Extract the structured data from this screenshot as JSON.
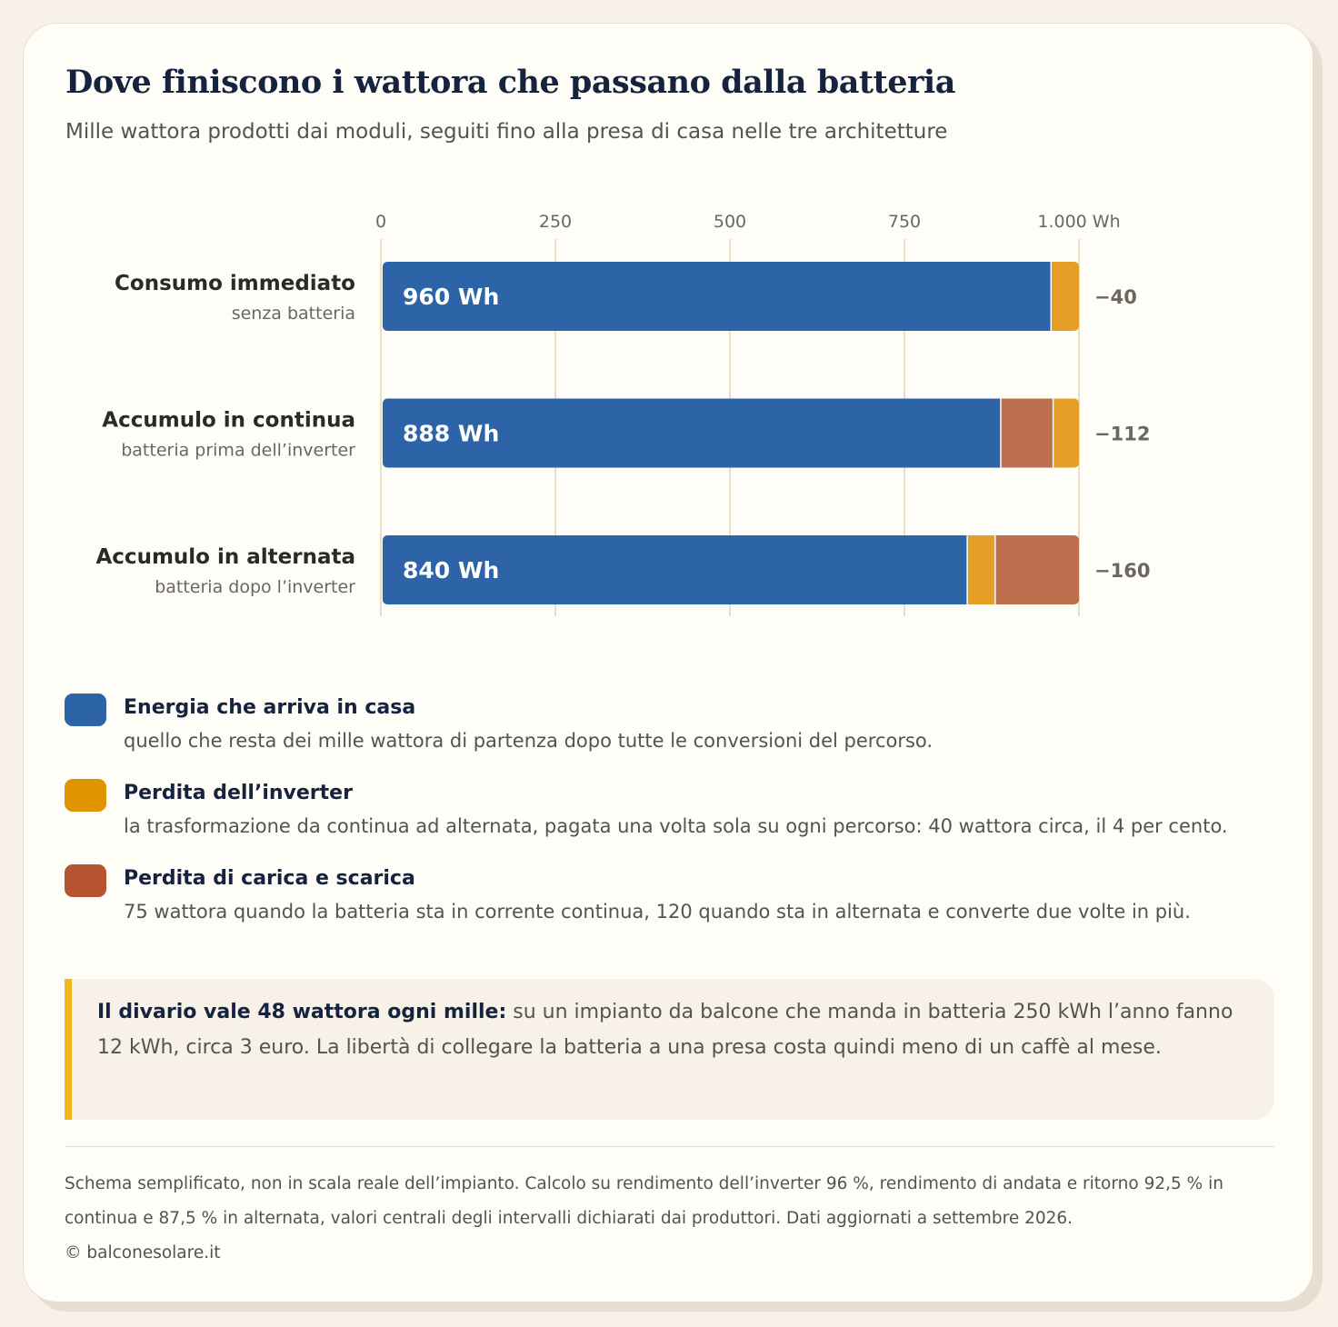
{
  "header": {
    "title": "Dove finiscono i wattora che passano dalla batteria",
    "subtitle": "Mille wattora prodotti dai moduli, seguiti fino alla presa di casa nelle tre architetture"
  },
  "colors": {
    "energy": "#2c64a7",
    "inverter_loss": "#e59e26",
    "battery_loss": "#bd6e4c",
    "legend_energy": "#2c64a7",
    "legend_inverter": "#e09400",
    "legend_battery": "#b65431"
  },
  "chart_data": {
    "type": "bar",
    "orientation": "horizontal",
    "stacked": true,
    "xlim": [
      0,
      1000
    ],
    "x_ticks": [
      0,
      250,
      500,
      750,
      1000
    ],
    "x_tick_labels": [
      "0",
      "250",
      "500",
      "750",
      "1.000 Wh"
    ],
    "grid": true,
    "categories": [
      {
        "label": "Consumo immediato",
        "sublabel": "senza batteria",
        "value_label": "960 Wh",
        "loss_label": "−40",
        "segments": [
          {
            "kind": "energy",
            "value": 960
          },
          {
            "kind": "inverter_loss",
            "value": 40
          }
        ]
      },
      {
        "label": "Accumulo in continua",
        "sublabel": "batteria prima dell’inverter",
        "value_label": "888 Wh",
        "loss_label": "−112",
        "segments": [
          {
            "kind": "energy",
            "value": 888
          },
          {
            "kind": "battery_loss",
            "value": 75
          },
          {
            "kind": "inverter_loss",
            "value": 37
          }
        ]
      },
      {
        "label": "Accumulo in alternata",
        "sublabel": "batteria dopo l’inverter",
        "value_label": "840 Wh",
        "loss_label": "−160",
        "segments": [
          {
            "kind": "energy",
            "value": 840
          },
          {
            "kind": "inverter_loss",
            "value": 40
          },
          {
            "kind": "battery_loss",
            "value": 120
          }
        ]
      }
    ]
  },
  "legend": {
    "items": [
      {
        "title": "Energia che arriva in casa",
        "desc": "quello che resta dei mille wattora di partenza dopo tutte le conversioni del percorso."
      },
      {
        "title": "Perdita dell’inverter",
        "desc": "la trasformazione da continua ad alternata, pagata una volta sola su ogni percorso: 40 wattora circa, il 4 per cento."
      },
      {
        "title": "Perdita di carica e scarica",
        "desc": "75 wattora quando la batteria sta in corrente continua, 120 quando sta in alternata e converte due volte in più."
      }
    ]
  },
  "note": {
    "strong": "Il divario vale 48 wattora ogni mille:",
    "text": "su un impianto da balcone che manda in batteria 250 kWh l’anno fanno 12 kWh, circa 3 euro. La libertà di collegare la batteria a una presa costa quindi meno di un caffè al mese."
  },
  "footer": {
    "text": "Schema semplificato, non in scala reale dell’impianto. Calcolo su rendimento dell’inverter 96 %, rendimento di andata e ritorno 92,5 % in continua e 87,5 % in alternata, valori centrali degli intervalli dichiarati dai produttori. Dati aggiornati a settembre 2026.",
    "copyright": "© balconesolare.it"
  }
}
